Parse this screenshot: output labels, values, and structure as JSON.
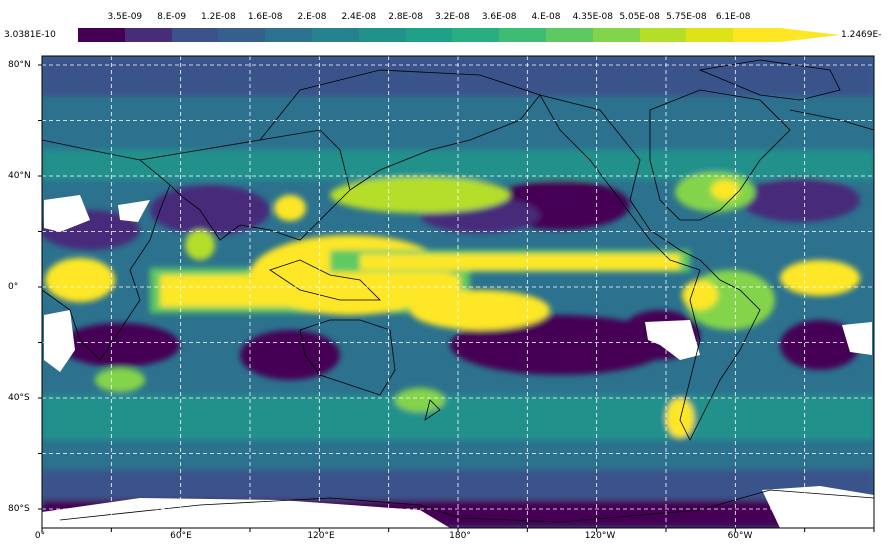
{
  "colorbar": {
    "min_label": "3.0381E-10",
    "max_label": "1.2469E-",
    "tick_labels": [
      "3.5E-09",
      "8.E-09",
      "1.2E-08",
      "1.6E-08",
      "2.E-08",
      "2.4E-08",
      "2.8E-08",
      "3.2E-08",
      "3.6E-08",
      "4.E-08",
      "4.35E-08",
      "5.05E-08",
      "5.75E-08",
      "6.1E-08"
    ],
    "colors": [
      "#440154",
      "#472c7a",
      "#3b528b",
      "#35608d",
      "#2c728e",
      "#26828e",
      "#21918c",
      "#1fa187",
      "#28ae80",
      "#3fbc73",
      "#5ec962",
      "#84d44b",
      "#b5de2b",
      "#dde318",
      "#fde725"
    ]
  },
  "axes": {
    "lat_labels": [
      "80°N",
      "40°N",
      "0°",
      "40°S",
      "80°S"
    ],
    "lon_labels": [
      "0°",
      "60°E",
      "120°E",
      "180°",
      "120°W",
      "60°W"
    ]
  },
  "map_colors": {
    "ocean_low": "#440154",
    "no_data": "#ffffff",
    "coast": "#000000",
    "grid": "#ffffff"
  }
}
